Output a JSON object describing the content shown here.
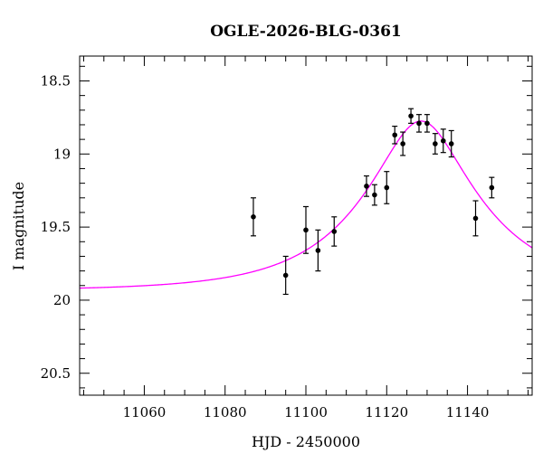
{
  "chart_data": {
    "type": "scatter",
    "title": "OGLE-2026-BLG-0361",
    "xlabel": "HJD - 2450000",
    "ylabel": "I magnitude",
    "xlim": [
      11044,
      11156
    ],
    "ylim": [
      20.65,
      18.33
    ],
    "y_inverted": true,
    "grid": false,
    "x_ticks": [
      11060,
      11080,
      11100,
      11120,
      11140
    ],
    "x_tick_labels": [
      "11060",
      "11080",
      "11100",
      "11120",
      "11140"
    ],
    "x_minor_step": 5,
    "y_ticks": [
      18.5,
      19,
      19.5,
      20,
      20.5
    ],
    "y_tick_labels": [
      "18.5",
      "19",
      "19.5",
      "20",
      "20.5"
    ],
    "y_minor_step": 0.1,
    "points": {
      "x": [
        11087,
        11095,
        11100,
        11103,
        11107,
        11115,
        11117,
        11120,
        11122,
        11124,
        11126,
        11128,
        11130,
        11132,
        11134,
        11136,
        11142,
        11146
      ],
      "y": [
        19.43,
        19.83,
        19.52,
        19.66,
        19.53,
        19.22,
        19.28,
        19.23,
        18.87,
        18.93,
        18.74,
        18.79,
        18.79,
        18.93,
        18.91,
        18.93,
        19.44,
        19.23
      ],
      "err": [
        0.13,
        0.13,
        0.16,
        0.14,
        0.1,
        0.07,
        0.07,
        0.11,
        0.06,
        0.08,
        0.05,
        0.06,
        0.06,
        0.07,
        0.08,
        0.09,
        0.12,
        0.07
      ],
      "color": "#000000"
    },
    "model": {
      "type": "paczynski",
      "t0": 11128.5,
      "u0": 0.36,
      "tE": 28,
      "baseline_mag": 19.935,
      "color": "#ff00ff"
    }
  }
}
